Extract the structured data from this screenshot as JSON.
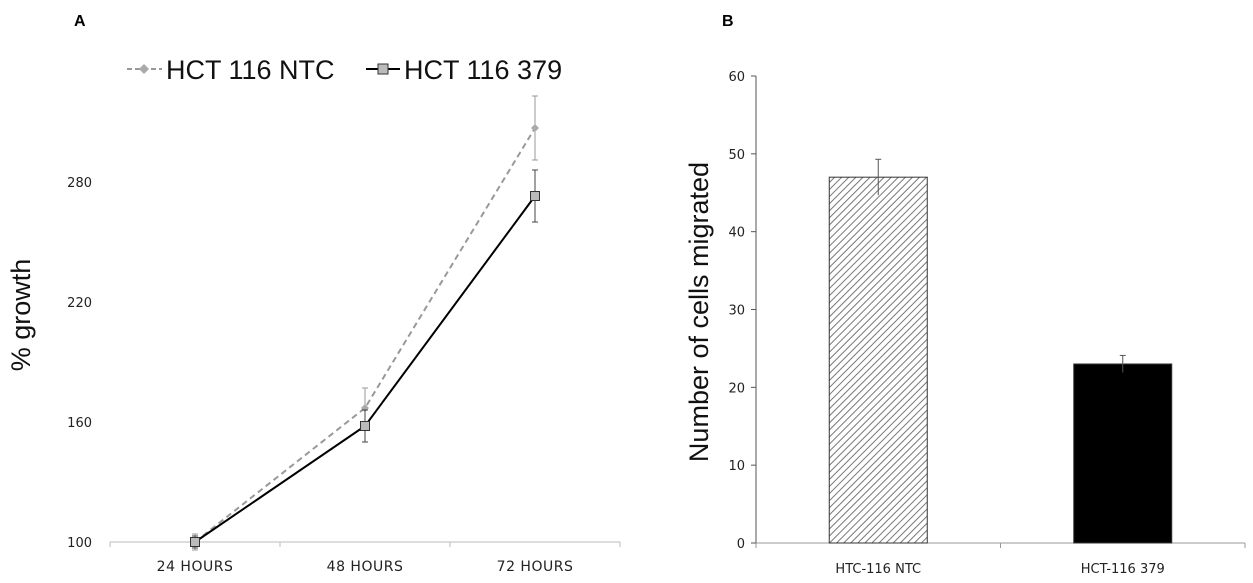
{
  "chart_data": [
    {
      "type": "line",
      "panel_label": "A",
      "categories": [
        "24 HOURS",
        "48 HOURS",
        "72 HOURS"
      ],
      "series": [
        {
          "name": "HCT 116 NTC",
          "values": [
            100,
            167,
            307
          ],
          "error": [
            4,
            10,
            16
          ],
          "color": "#999999",
          "style": "dashed",
          "marker": "diamond"
        },
        {
          "name": "HCT 116 379",
          "values": [
            100,
            158,
            273
          ],
          "error": [
            3,
            8,
            13
          ],
          "color": "#000000",
          "style": "solid",
          "marker": "square"
        }
      ],
      "ylabel": "% growth",
      "yticks": [
        100,
        160,
        220,
        280
      ],
      "ylim": [
        100,
        320
      ],
      "legend": "top"
    },
    {
      "type": "bar",
      "panel_label": "B",
      "categories": [
        "HTC-116 NTC",
        "HCT-116 379"
      ],
      "values": [
        47,
        23
      ],
      "error": [
        2.3,
        1.1
      ],
      "fills": [
        "hatched",
        "#000000"
      ],
      "ylabel": "Number of cells migrated",
      "yticks": [
        0,
        10,
        20,
        30,
        40,
        50,
        60
      ],
      "ylim": [
        0,
        60
      ]
    }
  ]
}
